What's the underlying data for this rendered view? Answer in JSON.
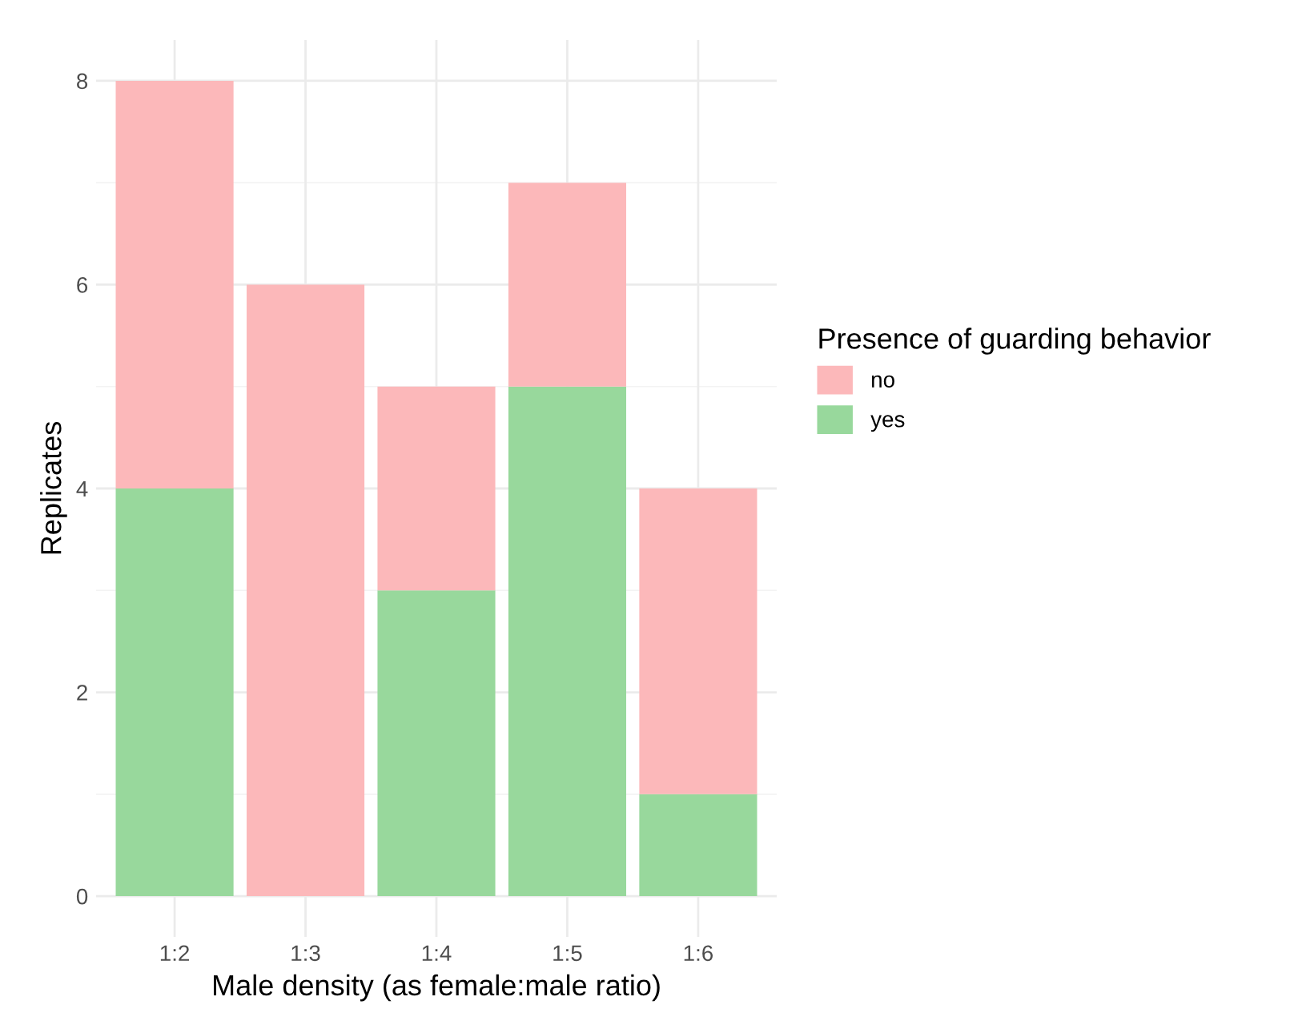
{
  "chart_data": {
    "type": "bar",
    "stacked": true,
    "xlabel": "Male density (as female:male ratio)",
    "ylabel": "Replicates",
    "legend_title": "Presence of guarding behavior",
    "categories": [
      "1:2",
      "1:3",
      "1:4",
      "1:5",
      "1:6"
    ],
    "series": [
      {
        "name": "yes",
        "color": "#98d89c",
        "values": [
          4,
          0,
          3,
          5,
          1
        ]
      },
      {
        "name": "no",
        "color": "#fcb8ba",
        "values": [
          4,
          6,
          2,
          2,
          3
        ]
      }
    ],
    "ylim": [
      -0.4,
      8.4
    ],
    "yticks": [
      0,
      2,
      4,
      6,
      8
    ],
    "grid": true,
    "legend": "right"
  }
}
